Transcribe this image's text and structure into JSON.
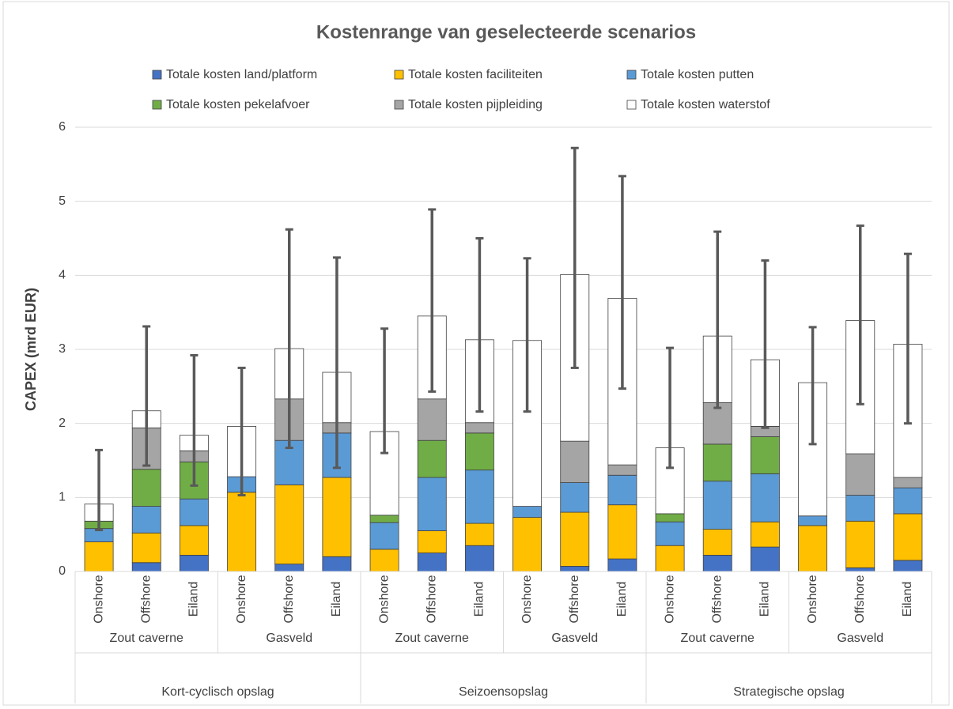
{
  "chart_data": {
    "type": "stacked_bar",
    "title": "Kostenrange van geselecteerde scenarios",
    "y_label": "CAPEX (mrd EUR)",
    "categories": [
      "Onshore",
      "Offshore",
      "Eiland",
      "Onshore",
      "Offshore",
      "Eiland",
      "Onshore",
      "Offshore",
      "Eiland",
      "Onshore",
      "Offshore",
      "Eiland",
      "Onshore",
      "Offshore",
      "Eiland",
      "Onshore",
      "Offshore",
      "Eiland"
    ],
    "groups": [
      "Zout caverne",
      "Gasveld",
      "Zout caverne",
      "Gasveld",
      "Zout caverne",
      "Gasveld"
    ],
    "supergroups": [
      "Kort-cyclisch opslag",
      "Seizoensopslag",
      "Strategische opslag"
    ],
    "series": [
      {
        "name": "Totale kosten land/platform",
        "color": "#4472c4",
        "values": [
          0,
          0.12,
          0.22,
          0,
          0.1,
          0.2,
          0,
          0.25,
          0.35,
          0,
          0.07,
          0.17,
          0,
          0.22,
          0.33,
          0,
          0.05,
          0.15
        ]
      },
      {
        "name": "Totale kosten faciliteiten",
        "color": "#ffc000",
        "values": [
          0.4,
          0.4,
          0.4,
          1.07,
          1.07,
          1.07,
          0.3,
          0.3,
          0.3,
          0.73,
          0.73,
          0.73,
          0.35,
          0.35,
          0.34,
          0.62,
          0.63,
          0.63
        ]
      },
      {
        "name": "Totale kosten putten",
        "color": "#5b9bd5",
        "values": [
          0.18,
          0.36,
          0.36,
          0.21,
          0.6,
          0.6,
          0.36,
          0.72,
          0.72,
          0.15,
          0.4,
          0.4,
          0.32,
          0.65,
          0.65,
          0.13,
          0.35,
          0.35
        ]
      },
      {
        "name": "Totale kosten pekelafvoer",
        "color": "#70ad47",
        "values": [
          0.1,
          0.5,
          0.5,
          0,
          0,
          0,
          0.1,
          0.5,
          0.5,
          0,
          0,
          0,
          0.11,
          0.5,
          0.5,
          0,
          0,
          0
        ]
      },
      {
        "name": "Totale kosten pijpleiding",
        "color": "#a5a5a5",
        "values": [
          0,
          0.56,
          0.15,
          0,
          0.56,
          0.14,
          0,
          0.56,
          0.14,
          0,
          0.56,
          0.14,
          0,
          0.56,
          0.14,
          0,
          0.56,
          0.14
        ]
      },
      {
        "name": "Totale kosten waterstof",
        "color": "#ffffff",
        "values": [
          0.23,
          0.23,
          0.21,
          0.68,
          0.68,
          0.68,
          1.13,
          1.12,
          1.12,
          2.24,
          2.25,
          2.25,
          0.89,
          0.9,
          0.9,
          1.8,
          1.8,
          1.8
        ]
      }
    ],
    "error_low": [
      0.56,
      1.43,
      1.16,
      1.03,
      1.67,
      1.4,
      1.6,
      2.43,
      2.16,
      2.16,
      2.75,
      2.47,
      1.4,
      2.21,
      1.94,
      1.72,
      2.26,
      2.0
    ],
    "error_high": [
      1.64,
      3.31,
      2.92,
      2.75,
      4.62,
      4.24,
      3.28,
      4.89,
      4.5,
      4.23,
      5.72,
      5.34,
      3.02,
      4.59,
      4.2,
      3.3,
      4.67,
      4.29
    ],
    "error_color": "#595959",
    "ylim": [
      0,
      6
    ],
    "yticks": [
      0,
      1,
      2,
      3,
      4,
      5,
      6
    ],
    "grid": true
  }
}
